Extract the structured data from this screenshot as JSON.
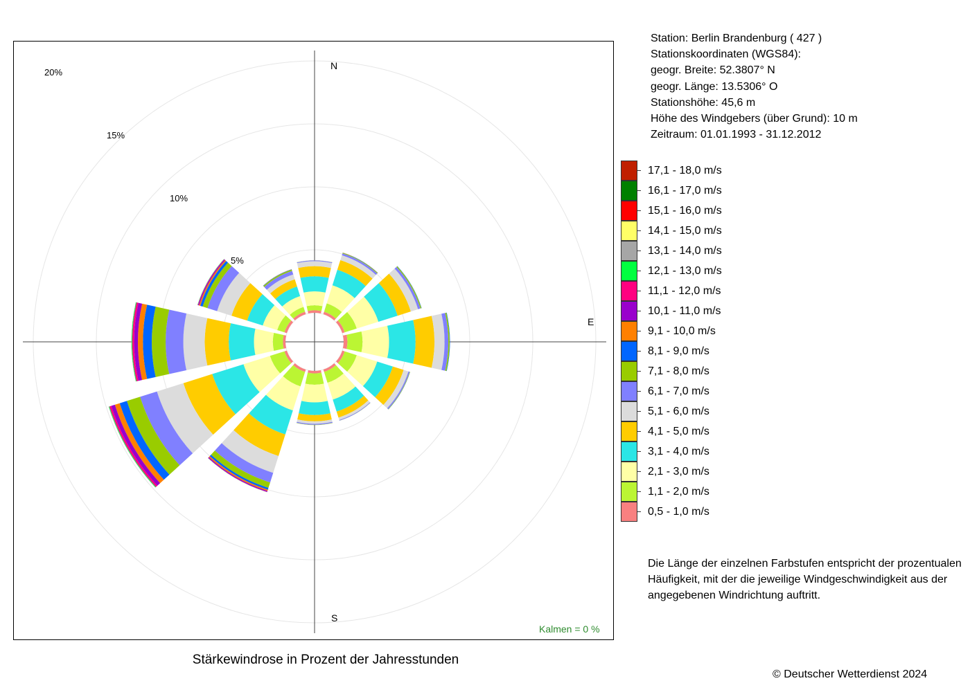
{
  "station": {
    "line_station": "Station:  Berlin Brandenburg  ( 427 )",
    "line_coords_heading": "Stationskoordinaten (WGS84):",
    "line_lat": "geogr. Breite: 52.3807° N",
    "line_lon": "geogr. Länge: 13.5306° O",
    "line_height": "Stationshöhe: 45,6 m",
    "line_anemometer": "Höhe des Windgebers (über Grund): 10 m",
    "line_period": "Zeitraum: 01.01.1993 - 31.12.2012"
  },
  "description": "Die Länge der einzelnen Farbstufen entspricht der prozentualen Häufigkeit, mit der die jeweilige Windgeschwindigkeit aus der angegebenen Windrichtung auftritt.",
  "copyright": "© Deutscher Wetterdienst  2024",
  "chart_data": {
    "type": "wind-rose",
    "title": "Stärkewindrose in Prozent der Jahresstunden",
    "calm_label": "Kalmen  =  0 %",
    "compass_labels": {
      "north": "N",
      "east": "E",
      "south": "S"
    },
    "ring_labels": [
      "5%",
      "10%",
      "15%",
      "20%"
    ],
    "rings": [
      5,
      10,
      15,
      20
    ],
    "grid": true,
    "legend_position": "right",
    "directions_deg": [
      0,
      30,
      60,
      90,
      120,
      150,
      180,
      210,
      240,
      270,
      300,
      330
    ],
    "speed_classes": [
      {
        "label": "0,5 - 1,0 m/s",
        "color": "#f88080"
      },
      {
        "label": "1,1 - 2,0 m/s",
        "color": "#bbf533"
      },
      {
        "label": "2,1 - 3,0 m/s",
        "color": "#ffffa6"
      },
      {
        "label": "3,1 - 4,0 m/s",
        "color": "#2be6e6"
      },
      {
        "label": "4,1 - 5,0 m/s",
        "color": "#ffcc00"
      },
      {
        "label": "5,1 - 6,0 m/s",
        "color": "#dcdcdc"
      },
      {
        "label": "6,1 - 7,0 m/s",
        "color": "#8080ff"
      },
      {
        "label": "7,1 - 8,0 m/s",
        "color": "#99cc00"
      },
      {
        "label": "8,1 - 9,0 m/s",
        "color": "#0066ff"
      },
      {
        "label": "9,1 - 10,0 m/s",
        "color": "#ff8000"
      },
      {
        "label": "10,1 - 11,0 m/s",
        "color": "#9900cc"
      },
      {
        "label": "11,1 - 12,0 m/s",
        "color": "#ff0080"
      },
      {
        "label": "12,1 - 13,0 m/s",
        "color": "#00ff40"
      },
      {
        "label": "13,1 - 14,0 m/s",
        "color": "#a6a6a6"
      },
      {
        "label": "14,1 - 15,0 m/s",
        "color": "#ffff66"
      },
      {
        "label": "15,1 - 16,0 m/s",
        "color": "#ff0000"
      },
      {
        "label": "16,1 - 17,0 m/s",
        "color": "#008000"
      },
      {
        "label": "17,1 - 18,0 m/s",
        "color": "#c02000"
      }
    ],
    "values": [
      [
        0.2,
        0.4,
        1.1,
        1.2,
        0.8,
        0.4,
        0.06,
        0.01,
        0.0,
        0.0,
        0.0,
        0.0,
        0.0,
        0.0,
        0.0,
        0.0,
        0.0,
        0.0
      ],
      [
        0.2,
        0.7,
        1.5,
        1.3,
        0.8,
        0.4,
        0.15,
        0.05,
        0.02,
        0.01,
        0.0,
        0.0,
        0.0,
        0.0,
        0.0,
        0.0,
        0.0,
        0.0
      ],
      [
        0.2,
        1.0,
        1.8,
        1.6,
        1.1,
        0.6,
        0.2,
        0.08,
        0.02,
        0.0,
        0.0,
        0.0,
        0.0,
        0.0,
        0.0,
        0.0,
        0.0,
        0.0
      ],
      [
        0.3,
        1.2,
        2.1,
        2.1,
        1.5,
        0.8,
        0.3,
        0.1,
        0.03,
        0.0,
        0.0,
        0.0,
        0.0,
        0.0,
        0.0,
        0.0,
        0.0,
        0.0
      ],
      [
        0.2,
        1.0,
        1.7,
        1.3,
        0.9,
        0.4,
        0.1,
        0.03,
        0.01,
        0.0,
        0.0,
        0.0,
        0.0,
        0.0,
        0.0,
        0.0,
        0.0,
        0.0
      ],
      [
        0.2,
        0.9,
        1.4,
        1.0,
        0.5,
        0.2,
        0.05,
        0.01,
        0.0,
        0.0,
        0.0,
        0.0,
        0.0,
        0.0,
        0.0,
        0.0,
        0.0,
        0.0
      ],
      [
        0.2,
        0.9,
        1.4,
        1.0,
        0.5,
        0.2,
        0.08,
        0.02,
        0.0,
        0.0,
        0.0,
        0.0,
        0.0,
        0.0,
        0.0,
        0.0,
        0.0,
        0.0
      ],
      [
        0.2,
        1.2,
        2.0,
        2.0,
        1.8,
        1.4,
        0.8,
        0.45,
        0.15,
        0.1,
        0.08,
        0.02,
        0.01,
        0.0,
        0.0,
        0.0,
        0.0,
        0.0
      ],
      [
        0.2,
        1.2,
        2.2,
        2.6,
        2.4,
        2.2,
        1.4,
        1.1,
        0.6,
        0.4,
        0.3,
        0.15,
        0.05,
        0.02,
        0.0,
        0.0,
        0.0,
        0.0
      ],
      [
        0.2,
        0.8,
        1.5,
        2.0,
        1.9,
        1.7,
        1.4,
        1.1,
        0.7,
        0.4,
        0.3,
        0.15,
        0.05,
        0.02,
        0.0,
        0.0,
        0.0,
        0.0
      ],
      [
        0.2,
        0.6,
        1.2,
        1.3,
        1.3,
        1.2,
        0.8,
        0.4,
        0.2,
        0.1,
        0.08,
        0.03,
        0.02,
        0.0,
        0.0,
        0.0,
        0.0,
        0.0
      ],
      [
        0.2,
        0.4,
        0.9,
        0.8,
        0.6,
        0.4,
        0.3,
        0.1,
        0.03,
        0.01,
        0.0,
        0.0,
        0.0,
        0.0,
        0.0,
        0.0,
        0.0,
        0.0
      ]
    ]
  }
}
